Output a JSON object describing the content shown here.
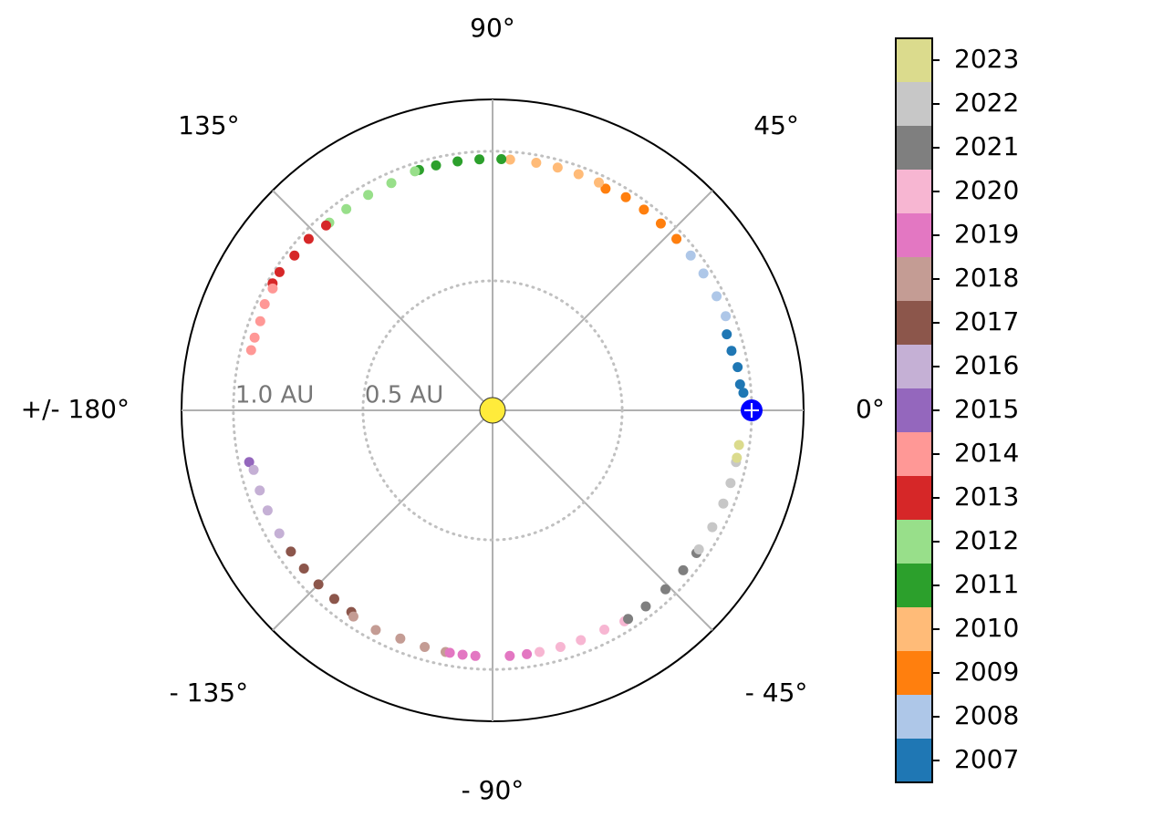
{
  "chart_data": {
    "type": "polar-scatter",
    "rlim": [
      0,
      1.2
    ],
    "rticks": [
      {
        "value": 0.5,
        "label": "0.5 AU"
      },
      {
        "value": 1.0,
        "label": "1.0 AU"
      }
    ],
    "thetaticks": [
      {
        "value": 0,
        "label": "0°"
      },
      {
        "value": 45,
        "label": "45°"
      },
      {
        "value": 90,
        "label": "90°"
      },
      {
        "value": 135,
        "label": "135°"
      },
      {
        "value": 180,
        "label": "+/- 180°"
      },
      {
        "value": -135,
        "label": "- 135°"
      },
      {
        "value": -90,
        "label": "- 90°"
      },
      {
        "value": -45,
        "label": "- 45°"
      }
    ],
    "grid": true,
    "series": [
      {
        "name": "2007",
        "color": "#1f77b4",
        "theta": [
          18,
          14,
          10,
          6,
          4
        ],
        "r": [
          0.95,
          0.95,
          0.96,
          0.96,
          0.97
        ]
      },
      {
        "name": "2008",
        "color": "#aec7e8",
        "theta": [
          43,
          38,
          33,
          27,
          22
        ],
        "r": [
          0.97,
          0.97,
          0.97,
          0.97,
          0.97
        ]
      },
      {
        "name": "2009",
        "color": "#ff7f0e",
        "theta": [
          43,
          48,
          53,
          58,
          63
        ],
        "r": [
          0.97,
          0.97,
          0.97,
          0.97,
          0.96
        ]
      },
      {
        "name": "2010",
        "color": "#ffbb78",
        "theta": [
          65,
          70,
          75,
          80,
          86
        ],
        "r": [
          0.97,
          0.97,
          0.97,
          0.97,
          0.97
        ]
      },
      {
        "name": "2011",
        "color": "#2ca02c",
        "theta": [
          88,
          93,
          98,
          103,
          107
        ],
        "r": [
          0.97,
          0.97,
          0.97,
          0.97,
          0.97
        ]
      },
      {
        "name": "2012",
        "color": "#98df8a",
        "theta": [
          108,
          114,
          120,
          126,
          131
        ],
        "r": [
          0.97,
          0.96,
          0.96,
          0.96,
          0.96
        ]
      },
      {
        "name": "2013",
        "color": "#d62728",
        "theta": [
          132,
          137,
          142,
          147,
          150
        ],
        "r": [
          0.96,
          0.97,
          0.97,
          0.98,
          0.98
        ]
      },
      {
        "name": "2014",
        "color": "#ff9896",
        "theta": [
          151,
          155,
          159,
          163,
          166
        ],
        "r": [
          0.97,
          0.97,
          0.96,
          0.96,
          0.96
        ]
      },
      {
        "name": "2015",
        "color": "#9467bd",
        "theta": [
          -168
        ],
        "r": [
          0.96
        ]
      },
      {
        "name": "2016",
        "color": "#c5b0d5",
        "theta": [
          -166,
          -161,
          -156,
          -150,
          -145
        ],
        "r": [
          0.95,
          0.95,
          0.95,
          0.95,
          0.95
        ]
      },
      {
        "name": "2017",
        "color": "#8c564b",
        "theta": [
          -145,
          -140,
          -135,
          -130,
          -125
        ],
        "r": [
          0.95,
          0.95,
          0.95,
          0.95,
          0.95
        ]
      },
      {
        "name": "2018",
        "color": "#c49c94",
        "theta": [
          -124,
          -118,
          -112,
          -106,
          -101
        ],
        "r": [
          0.96,
          0.96,
          0.95,
          0.95,
          0.95
        ]
      },
      {
        "name": "2019",
        "color": "#e377c2",
        "theta": [
          -100,
          -97,
          -94,
          -86,
          -82
        ],
        "r": [
          0.95,
          0.95,
          0.95,
          0.95,
          0.95
        ]
      },
      {
        "name": "2020",
        "color": "#f7b6d2",
        "theta": [
          -79,
          -74,
          -69,
          -63,
          -58
        ],
        "r": [
          0.95,
          0.95,
          0.95,
          0.95,
          0.96
        ]
      },
      {
        "name": "2021",
        "color": "#7f7f7f",
        "theta": [
          -57,
          -52,
          -46,
          -40,
          -35
        ],
        "r": [
          0.96,
          0.96,
          0.96,
          0.96,
          0.96
        ]
      },
      {
        "name": "2022",
        "color": "#c7c7c7",
        "theta": [
          -34,
          -28,
          -22,
          -17,
          -12
        ],
        "r": [
          0.96,
          0.96,
          0.96,
          0.96,
          0.96
        ]
      },
      {
        "name": "2023",
        "color": "#dbdb8d",
        "theta": [
          -11,
          -8
        ],
        "r": [
          0.96,
          0.96
        ]
      }
    ]
  }
}
